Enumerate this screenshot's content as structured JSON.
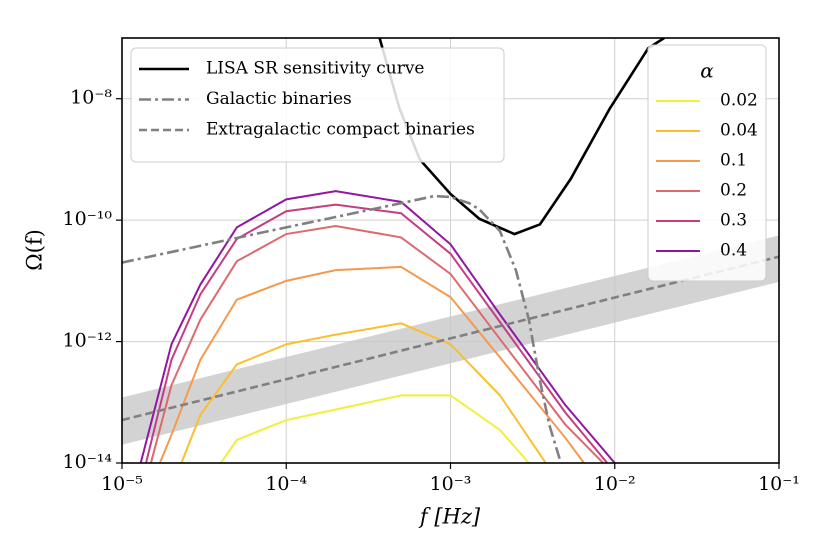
{
  "chart_data": {
    "type": "line",
    "xlabel": "f [Hz]",
    "ylabel": "Ω(f)",
    "xlog": true,
    "ylog": true,
    "grid": true,
    "xlim": [
      1e-05,
      0.1
    ],
    "ylim": [
      1e-14,
      1e-07
    ],
    "xticks": [
      {
        "value": 1e-05,
        "label": "10⁻⁵"
      },
      {
        "value": 0.0001,
        "label": "10⁻⁴"
      },
      {
        "value": 0.001,
        "label": "10⁻³"
      },
      {
        "value": 0.01,
        "label": "10⁻²"
      },
      {
        "value": 0.1,
        "label": "10⁻¹"
      }
    ],
    "yticks": [
      {
        "value": 1e-14,
        "label": "10⁻¹⁴"
      },
      {
        "value": 1e-12,
        "label": "10⁻¹²"
      },
      {
        "value": 1e-10,
        "label": "10⁻¹⁰"
      },
      {
        "value": 1e-08,
        "label": "10⁻⁸"
      }
    ],
    "legend_title": "α",
    "legend_position": "upper right",
    "series": [
      {
        "name": "0.02",
        "color": "#eef03a",
        "x": [
          4e-05,
          5e-05,
          0.0001,
          0.0002,
          0.0005,
          0.001,
          0.002,
          0.003
        ],
        "values": [
          1e-14,
          2.4e-14,
          5.1e-14,
          7.6e-14,
          1.3e-13,
          1.3e-13,
          3.5e-14,
          1e-14
        ]
      },
      {
        "name": "0.04",
        "color": "#fbbf2e",
        "x": [
          2.3e-05,
          3e-05,
          5e-05,
          0.0001,
          0.0002,
          0.0005,
          0.001,
          0.002,
          0.0038
        ],
        "values": [
          1e-14,
          6.2e-14,
          4.2e-13,
          9e-13,
          1.3e-12,
          2e-12,
          9e-13,
          1.3e-13,
          1e-14
        ]
      },
      {
        "name": "0.1",
        "color": "#f59a4c",
        "x": [
          1.7e-05,
          2e-05,
          3e-05,
          5e-05,
          0.0001,
          0.0002,
          0.0005,
          0.001,
          0.002,
          0.005,
          0.0065
        ],
        "values": [
          1e-14,
          2.9e-14,
          5e-13,
          4.9e-12,
          1e-11,
          1.5e-11,
          1.7e-11,
          5.4e-12,
          5.5e-13,
          2.6e-14,
          1e-14
        ]
      },
      {
        "name": "0.2",
        "color": "#dc6a6e",
        "x": [
          1.5e-05,
          2e-05,
          3e-05,
          5e-05,
          0.0001,
          0.0002,
          0.0005,
          0.001,
          0.002,
          0.005,
          0.0085
        ],
        "values": [
          1e-14,
          1.9e-13,
          2.3e-12,
          2.1e-11,
          5.9e-11,
          8e-11,
          5.2e-11,
          1.3e-11,
          1.1e-12,
          4.3e-14,
          1e-14
        ]
      },
      {
        "name": "0.3",
        "color": "#c43e82",
        "x": [
          1.4e-05,
          2e-05,
          3e-05,
          5e-05,
          0.0001,
          0.0002,
          0.0005,
          0.001,
          0.002,
          0.005,
          0.009
        ],
        "values": [
          1e-14,
          5e-13,
          6e-12,
          4.9e-11,
          1.4e-10,
          1.8e-10,
          1.3e-10,
          2.8e-11,
          2.1e-12,
          6.8e-14,
          1e-14
        ]
      },
      {
        "name": "0.4",
        "color": "#9216a2",
        "x": [
          1.3e-05,
          2e-05,
          3e-05,
          5e-05,
          0.0001,
          0.0002,
          0.0005,
          0.001,
          0.002,
          0.005,
          0.01
        ],
        "values": [
          1e-14,
          9e-13,
          8.7e-12,
          7.6e-11,
          2.2e-10,
          3e-10,
          2e-10,
          4e-11,
          2.8e-12,
          9e-14,
          1e-14
        ]
      }
    ],
    "reference_legend_position": "upper left",
    "reference_series": [
      {
        "name": "LISA SR sensitivity curve",
        "color": "#000000",
        "style": "solid",
        "x": [
          0.00037,
          0.00049,
          0.00065,
          0.001,
          0.0015,
          0.00245,
          0.0035,
          0.0054,
          0.0093,
          0.016,
          0.02
        ],
        "values": [
          1e-07,
          6.8e-09,
          1e-09,
          2.7e-10,
          1.05e-10,
          5.9e-11,
          8.5e-11,
          4.8e-10,
          6.8e-09,
          6.8e-08,
          1e-07
        ]
      },
      {
        "name": "Galactic binaries",
        "color": "#808080",
        "style": "dashdot",
        "x": [
          1e-05,
          0.0001,
          0.0005,
          0.0008,
          0.001,
          0.0013,
          0.0015,
          0.002,
          0.0025,
          0.003,
          0.0035,
          0.004,
          0.0047
        ],
        "values": [
          2e-11,
          7.6e-11,
          1.9e-10,
          2.5e-10,
          2.4e-10,
          1.9e-10,
          1.5e-10,
          6.6e-11,
          1.5e-11,
          2.3e-12,
          2.3e-13,
          4.2e-14,
          1e-14
        ]
      },
      {
        "name": "Extragalactic compact binaries",
        "color": "#808080",
        "style": "dashed",
        "x": [
          1e-05,
          0.1
        ],
        "values": [
          5.1e-14,
          2.5e-11
        ],
        "band_color": "#c8c8c8",
        "band_x": [
          1e-05,
          0.1
        ],
        "band_low": [
          2e-14,
          9.6e-12
        ],
        "band_high": [
          1.2e-13,
          5.6e-11
        ]
      }
    ]
  }
}
